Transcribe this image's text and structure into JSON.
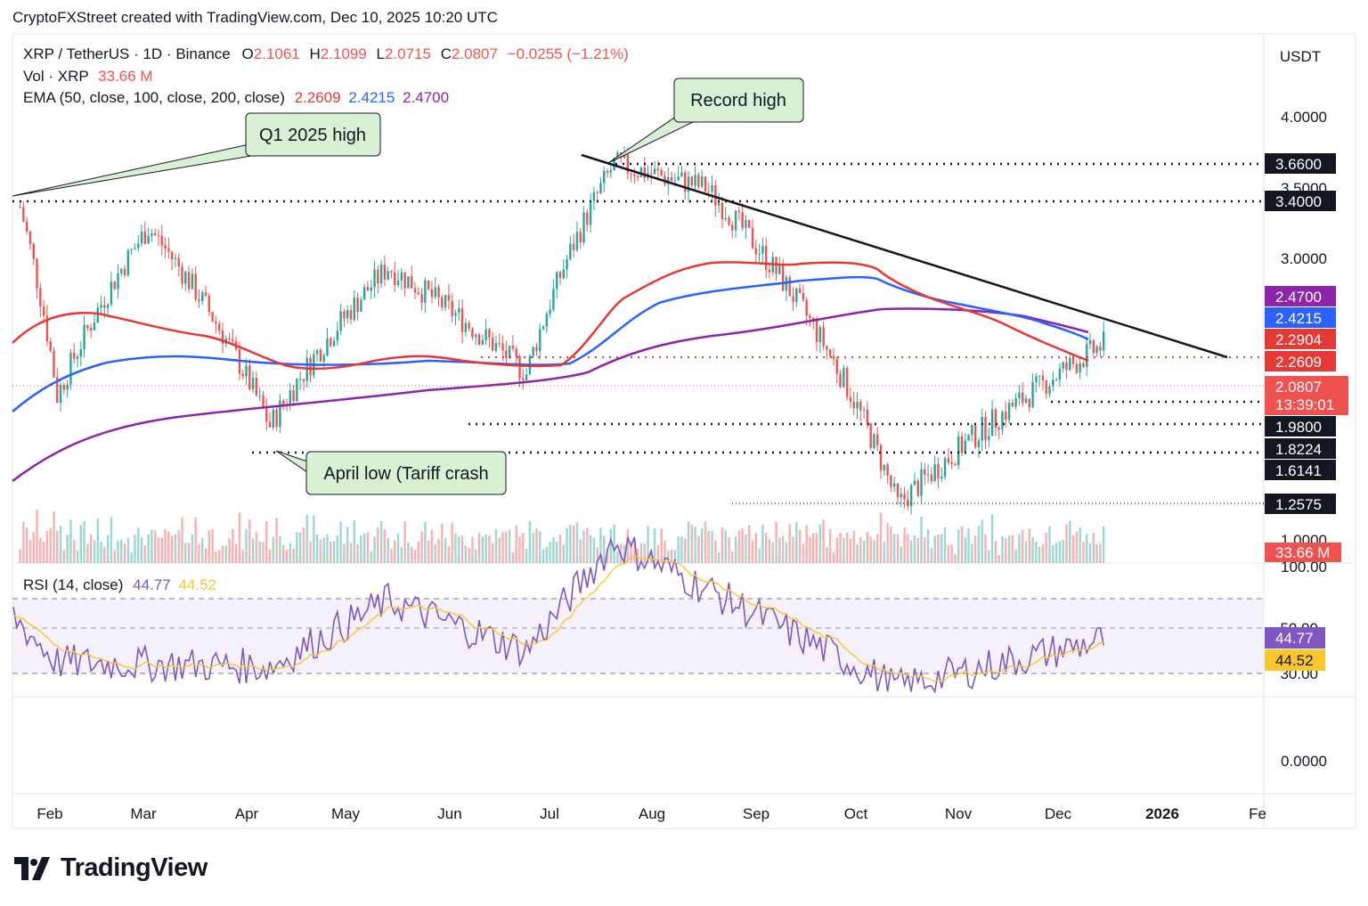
{
  "header": {
    "attribution": "CryptoFXStreet created with TradingView.com, Dec 10, 2025 10:20 UTC"
  },
  "legend": {
    "symbol": "XRP / TetherUS · 1D · Binance",
    "ohlc": {
      "o_label": "O",
      "o": "2.1061",
      "h_label": "H",
      "h": "2.1099",
      "l_label": "L",
      "l": "2.0715",
      "c_label": "C",
      "c": "2.0807",
      "change": "−0.0255 (−1.21%)"
    },
    "volume": {
      "label": "Vol · XRP",
      "value": "33.66 M"
    },
    "ema": {
      "label": "EMA (50, close, 100, close, 200, close)",
      "ema50": "2.2609",
      "ema100": "2.4215",
      "ema200": "2.4700"
    },
    "rsi": {
      "label": "RSI (14, close)",
      "rsi": "44.77",
      "ma": "44.52"
    }
  },
  "currency": "USDT",
  "colors": {
    "up": "#26a69a",
    "down": "#ef5350",
    "ema50": "#e53935",
    "ema100": "#2962ff",
    "ema200": "#8e24aa",
    "rsi": "#7e57c2",
    "rsi_ma": "#f9c62b",
    "callout_bg": "#d8f0d3"
  },
  "chart_data": [
    {
      "type": "candlestick",
      "price_axis": {
        "scale": "log",
        "ticks": [
          "4.0000",
          "3.5000",
          "3.0000",
          "1.0000"
        ],
        "price_tags": [
          {
            "value": "3.6600",
            "style": "black"
          },
          {
            "value": "3.4000",
            "style": "black"
          },
          {
            "value": "2.4700",
            "style": "ema200"
          },
          {
            "value": "2.4215",
            "style": "ema100"
          },
          {
            "value": "2.2904",
            "style": "ema50"
          },
          {
            "value": "2.2609",
            "style": "ema50"
          },
          {
            "value": "2.0807",
            "style": "last",
            "countdown": "13:39:01"
          },
          {
            "value": "1.9800",
            "style": "black"
          },
          {
            "value": "1.8224",
            "style": "black"
          },
          {
            "value": "1.6141",
            "style": "black"
          },
          {
            "value": "1.2575",
            "style": "black"
          }
        ],
        "volume_tag": "33.66 M"
      },
      "time_axis": [
        "Feb",
        "Mar",
        "Apr",
        "May",
        "Jun",
        "Jul",
        "Aug",
        "Sep",
        "Oct",
        "Nov",
        "Dec",
        "2026",
        "Fe"
      ],
      "key_points": [
        {
          "date": "2025-01-23",
          "close": 3.2
        },
        {
          "date": "2025-02-03",
          "low": 1.77
        },
        {
          "date": "2025-03-02",
          "high": 3.0
        },
        {
          "date": "2025-04-07",
          "low": 1.61
        },
        {
          "date": "2025-05-12",
          "high": 2.65
        },
        {
          "date": "2025-06-22",
          "low": 1.9
        },
        {
          "date": "2025-07-18",
          "high": 3.66
        },
        {
          "date": "2025-08-14",
          "high": 3.4
        },
        {
          "date": "2025-10-10",
          "low": 1.2575
        },
        {
          "date": "2025-11-21",
          "low": 1.82
        },
        {
          "date": "2025-12-10",
          "close": 2.0807
        }
      ],
      "levels": [
        "3.6600",
        "3.4000",
        "2.2609",
        "1.9800",
        "1.8224"
      ],
      "annotations": [
        {
          "text": "Q1 2025 high"
        },
        {
          "text": "Record high"
        },
        {
          "text": "April low (Tariff crash"
        }
      ]
    },
    {
      "type": "line",
      "name": "RSI (14, close)",
      "ticks": [
        "100.00",
        "50.00",
        "30.00",
        "0.0000"
      ],
      "bands": [
        70,
        50,
        30
      ],
      "last": {
        "rsi": "44.77",
        "ma": "44.52"
      },
      "key_points": [
        {
          "date": "2025-07-18",
          "rsi": 88
        },
        {
          "date": "2025-10-10",
          "rsi": 24
        },
        {
          "date": "2025-12-10",
          "rsi": 44.77
        }
      ]
    }
  ],
  "branding": {
    "logo_text": "TradingView"
  }
}
